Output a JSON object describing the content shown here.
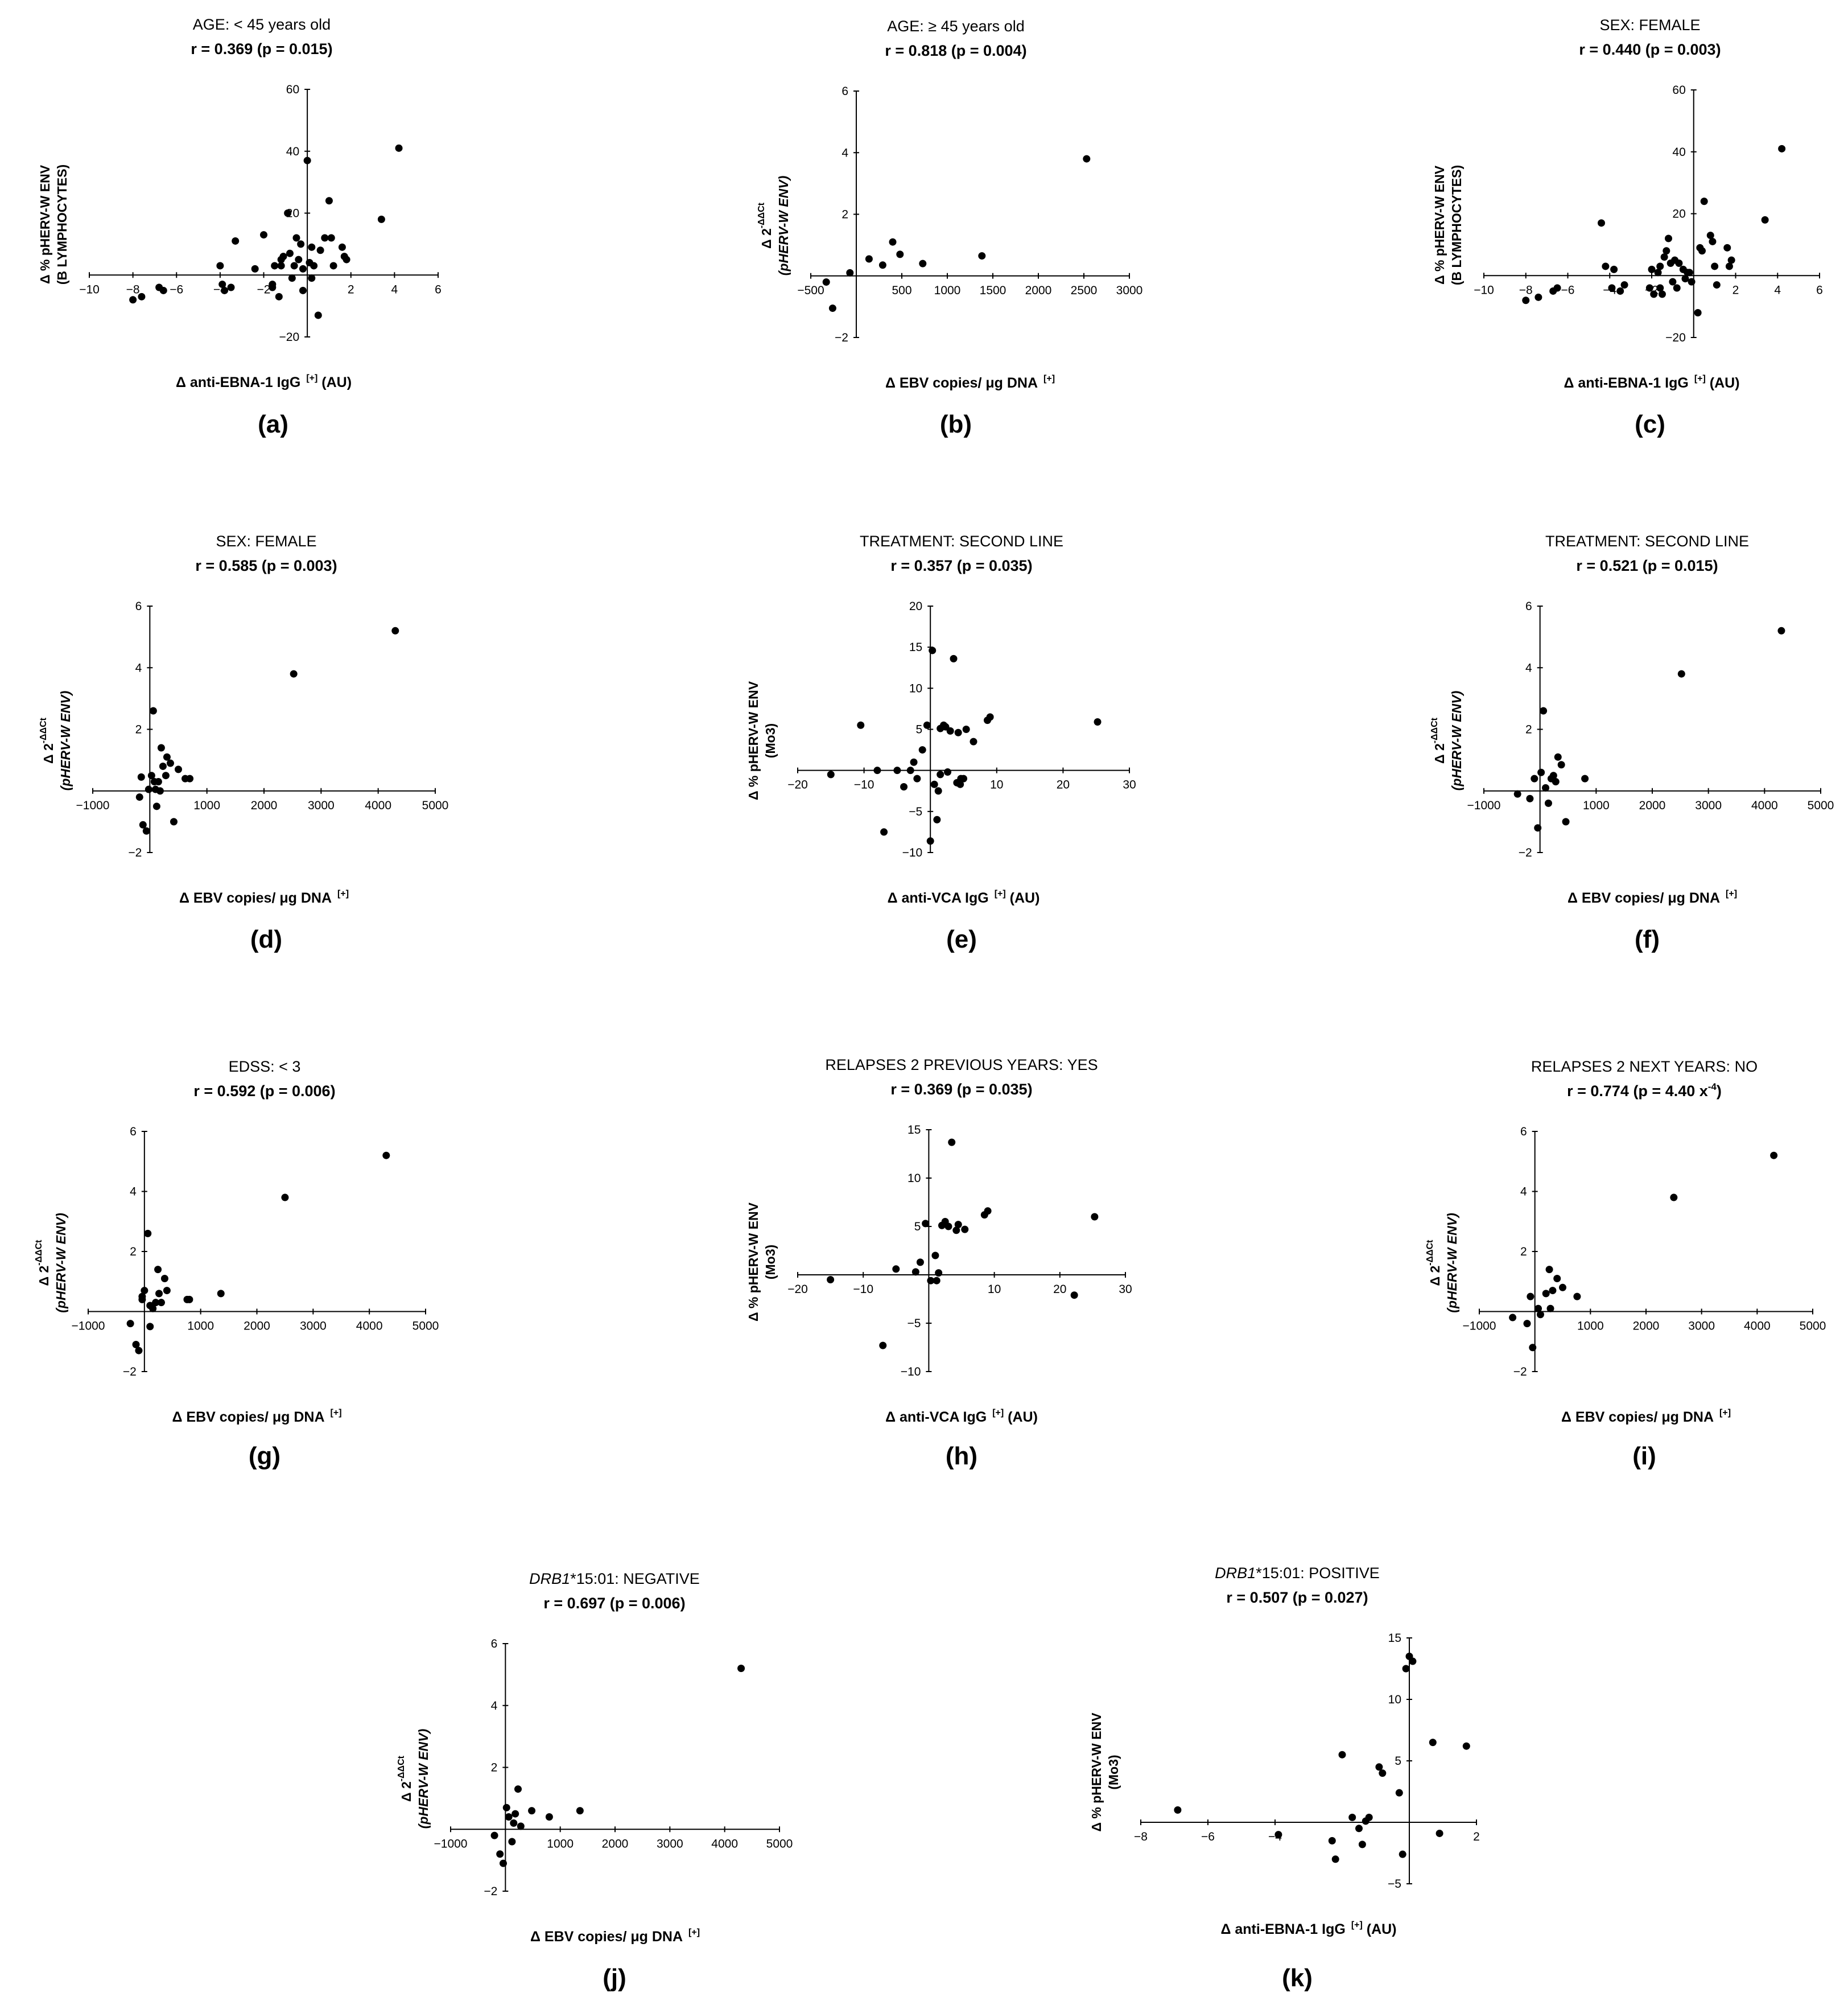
{
  "chart_data": [
    {
      "id": "a",
      "type": "scatter",
      "panel_label": "(a)",
      "title": "AGE: < 45 years old",
      "stat": "r = 0.369 (p = 0.015)",
      "ylabel": [
        "Δ % pHERV-W ENV",
        "(B LYMPHOCYTES)"
      ],
      "ylabel_italic": false,
      "xlabel": "Δ anti-EBNA-1 IgG",
      "xlabel_sup": "[+]",
      "xlabel_suffix": " (AU)",
      "xlim": [
        -10,
        6
      ],
      "ylim": [
        -20,
        60
      ],
      "xticks": [
        -10,
        -8,
        -6,
        -4,
        -2,
        2,
        4,
        6
      ],
      "yticks": [
        -20,
        20,
        40,
        60
      ],
      "x": [
        -8,
        -7.6,
        -6.8,
        -6.6,
        -4,
        -3.9,
        -3.8,
        -3.5,
        -3.3,
        -2.4,
        -2,
        -1.6,
        -1.5,
        -1.3,
        -1.2,
        -1.1,
        -0.9,
        -0.8,
        -0.7,
        -0.6,
        -0.5,
        -0.3,
        -0.2,
        0,
        0.1,
        0.2,
        0.3,
        0.5,
        0.6,
        1,
        1.1,
        1.2,
        1.6,
        1.7,
        1.8,
        3.4,
        4.2,
        -0.2,
        0.8,
        -1.2,
        -0.4,
        0.2,
        -1.6
      ],
      "y": [
        -8,
        -7,
        -4,
        -5,
        3,
        -3,
        -5,
        -4,
        11,
        2,
        13,
        -3,
        3,
        -7,
        5,
        6,
        20,
        7,
        -1,
        3,
        12,
        10,
        2,
        37,
        4,
        -1,
        3,
        -13,
        8,
        24,
        12,
        3,
        9,
        6,
        5,
        18,
        41,
        -5,
        12,
        3,
        5,
        9,
        -4
      ]
    },
    {
      "id": "b",
      "type": "scatter",
      "panel_label": "(b)",
      "title": "AGE: ≥ 45 years old",
      "stat": "r = 0.818 (p = 0.004)",
      "ylabel": [
        "Δ 2",
        "(pHERV-W ENV)"
      ],
      "ylabel_sup": "-ΔΔCt",
      "ylabel_italic": true,
      "xlabel": "Δ EBV copies/ μg DNA",
      "xlabel_sup": "[+]",
      "xlabel_suffix": "",
      "xlim": [
        -500,
        3000
      ],
      "ylim": [
        -2,
        6
      ],
      "xticks": [
        -500,
        500,
        1000,
        1500,
        2000,
        2500,
        3000
      ],
      "yticks": [
        -2,
        2,
        4,
        6
      ],
      "x": [
        -330,
        -260,
        -70,
        140,
        290,
        400,
        480,
        730,
        1380,
        2530
      ],
      "y": [
        -0.2,
        -1.05,
        0.1,
        0.55,
        0.35,
        1.1,
        0.7,
        0.4,
        0.65,
        3.8
      ]
    },
    {
      "id": "c",
      "type": "scatter",
      "panel_label": "(c)",
      "title": "SEX: FEMALE",
      "stat": "r = 0.440 (p = 0.003)",
      "ylabel": [
        "Δ % pHERV-W ENV",
        "(B LYMPHOCYTES)"
      ],
      "ylabel_italic": false,
      "xlabel": "Δ anti-EBNA-1 IgG",
      "xlabel_sup": "[+]",
      "xlabel_suffix": " (AU)",
      "xlim": [
        -10,
        6
      ],
      "ylim": [
        -20,
        60
      ],
      "xticks": [
        -10,
        -8,
        -6,
        -4,
        -2,
        2,
        4,
        6
      ],
      "yticks": [
        -20,
        20,
        40,
        60
      ],
      "x": [
        -8,
        -7.4,
        -6.7,
        -6.5,
        -4.4,
        -4.2,
        -3.9,
        -3.8,
        -3.5,
        -3.3,
        -2.1,
        -2,
        -1.9,
        -1.6,
        -1.5,
        -1.4,
        -1.3,
        -1.2,
        -1.1,
        -1,
        -0.9,
        -0.8,
        -0.7,
        -0.5,
        -0.4,
        -0.3,
        -0.1,
        0.2,
        0.3,
        0.5,
        0.8,
        0.9,
        1,
        1.1,
        1.6,
        1.7,
        1.8,
        3.4,
        4.2,
        -1.6,
        -0.2,
        -1.7,
        0.4
      ],
      "y": [
        -8,
        -7,
        -5,
        -4,
        17,
        3,
        -4,
        2,
        -5,
        -3,
        -4,
        2,
        -6,
        3,
        -6,
        6,
        8,
        12,
        4,
        -2,
        5,
        -4,
        4,
        2,
        -1,
        1,
        -2,
        -12,
        9,
        24,
        13,
        11,
        3,
        -3,
        9,
        3,
        5,
        18,
        41,
        -4,
        1,
        1,
        8
      ]
    },
    {
      "id": "d",
      "type": "scatter",
      "panel_label": "(d)",
      "title": "SEX: FEMALE",
      "stat": "r = 0.585 (p = 0.003)",
      "ylabel": [
        "Δ 2",
        "(pHERV-W ENV)"
      ],
      "ylabel_sup": "-ΔΔCt",
      "ylabel_italic": true,
      "xlabel": "Δ EBV copies/ μg DNA",
      "xlabel_sup": "[+]",
      "xlabel_suffix": "",
      "xlim": [
        -1000,
        5000
      ],
      "ylim": [
        -2,
        6
      ],
      "xticks": [
        -1000,
        1000,
        2000,
        3000,
        4000,
        5000
      ],
      "yticks": [
        -2,
        2,
        4,
        6
      ],
      "x": [
        -180,
        -120,
        -60,
        -20,
        30,
        60,
        80,
        120,
        150,
        180,
        200,
        230,
        280,
        300,
        360,
        420,
        500,
        620,
        700,
        2520,
        4300,
        -150,
        100
      ],
      "y": [
        -0.2,
        -1.1,
        -1.3,
        0.05,
        0.5,
        2.6,
        0.3,
        -0.5,
        0.3,
        0,
        1.4,
        0.8,
        0.5,
        1.1,
        0.9,
        -1,
        0.7,
        0.4,
        0.4,
        3.8,
        5.2,
        0.45,
        0.05
      ]
    },
    {
      "id": "e",
      "type": "scatter",
      "panel_label": "(e)",
      "title": "TREATMENT: SECOND LINE",
      "stat": "r = 0.357 (p = 0.035)",
      "ylabel": [
        "Δ % pHERV-W ENV",
        "(Mo3)"
      ],
      "ylabel_italic": false,
      "xlabel": "Δ anti-VCA IgG",
      "xlabel_sup": "[+]",
      "xlabel_suffix": " (AU)",
      "xlim": [
        -20,
        30
      ],
      "ylim": [
        -10,
        20
      ],
      "xticks": [
        -20,
        -10,
        10,
        20,
        30
      ],
      "yticks": [
        -10,
        -5,
        5,
        10,
        15,
        20
      ],
      "x": [
        -15,
        -10.5,
        -8,
        -7,
        -5,
        -4,
        -3,
        -2.5,
        -2,
        -1.2,
        -0.5,
        0.3,
        0.6,
        1,
        1.2,
        1.5,
        2,
        2.3,
        2.6,
        3,
        3.5,
        4,
        4.2,
        4.6,
        5,
        5.4,
        6.5,
        8.6,
        9,
        25.2,
        0,
        1.5,
        4.5
      ],
      "y": [
        -0.5,
        5.5,
        0,
        -7.5,
        0,
        -2,
        0,
        1,
        -1,
        2.5,
        5.5,
        14.6,
        -1.7,
        -6,
        -2.5,
        5.1,
        5.5,
        5.3,
        -0.2,
        4.8,
        13.6,
        -1.5,
        4.6,
        -1,
        -1,
        5,
        3.5,
        6.1,
        6.5,
        5.9,
        -8.6,
        -0.5,
        -1.7
      ]
    },
    {
      "id": "f",
      "type": "scatter",
      "panel_label": "(f)",
      "title": "TREATMENT: SECOND LINE",
      "stat": "r = 0.521 (p = 0.015)",
      "ylabel": [
        "Δ 2",
        "(pHERV-W ENV)"
      ],
      "ylabel_sup": "-ΔΔCt",
      "ylabel_italic": true,
      "xlabel": "Δ EBV copies/ μg DNA",
      "xlabel_sup": "[+]",
      "xlabel_suffix": "",
      "xlim": [
        -1000,
        5000
      ],
      "ylim": [
        -2,
        6
      ],
      "xticks": [
        -1000,
        1000,
        2000,
        3000,
        4000,
        5000
      ],
      "yticks": [
        -2,
        2,
        4,
        6
      ],
      "x": [
        -400,
        -180,
        -100,
        -40,
        20,
        60,
        100,
        150,
        200,
        280,
        320,
        380,
        460,
        800,
        2520,
        4300,
        240
      ],
      "y": [
        -0.1,
        -0.25,
        0.4,
        -1.2,
        0.6,
        2.6,
        0.1,
        -0.4,
        0.4,
        0.3,
        1.1,
        0.85,
        -1,
        0.4,
        3.8,
        5.2,
        0.5
      ]
    },
    {
      "id": "g",
      "type": "scatter",
      "panel_label": "(g)",
      "title": "EDSS: < 3",
      "stat": "r = 0.592 (p = 0.006)",
      "ylabel": [
        "Δ 2",
        "(pHERV-W ENV)"
      ],
      "ylabel_sup": "-ΔΔCt",
      "ylabel_italic": true,
      "xlabel": "Δ EBV copies/ μg DNA",
      "xlabel_sup": "[+]",
      "xlabel_suffix": "",
      "xlim": [
        -1000,
        5000
      ],
      "ylim": [
        -2,
        6
      ],
      "xticks": [
        -1000,
        1000,
        2000,
        3000,
        4000,
        5000
      ],
      "yticks": [
        -2,
        2,
        4,
        6
      ],
      "x": [
        -250,
        -150,
        -100,
        -40,
        0,
        60,
        100,
        150,
        200,
        240,
        260,
        300,
        360,
        400,
        760,
        800,
        1360,
        2500,
        4300,
        -40,
        100
      ],
      "y": [
        -0.4,
        -1.1,
        -1.3,
        0.4,
        0.7,
        2.6,
        -0.5,
        0.1,
        0.3,
        1.4,
        0.6,
        0.3,
        1.1,
        0.7,
        0.4,
        0.4,
        0.6,
        3.8,
        5.2,
        0.5,
        0.2
      ]
    },
    {
      "id": "h",
      "type": "scatter",
      "panel_label": "(h)",
      "title": "RELAPSES 2 PREVIOUS YEARS: YES",
      "stat": "r = 0.369 (p = 0.035)",
      "ylabel": [
        "Δ % pHERV-W ENV",
        "(Mo3)"
      ],
      "ylabel_italic": false,
      "xlabel": "Δ anti-VCA IgG",
      "xlabel_sup": "[+]",
      "xlabel_suffix": " (AU)",
      "xlim": [
        -20,
        30
      ],
      "ylim": [
        -10,
        15
      ],
      "xticks": [
        -20,
        -10,
        10,
        20,
        30
      ],
      "yticks": [
        -10,
        -5,
        5,
        10,
        15
      ],
      "x": [
        -15,
        -7,
        -5,
        -2,
        -1.3,
        -0.5,
        0.3,
        1,
        1.2,
        1.5,
        2,
        2.5,
        3,
        3.5,
        4.2,
        4.5,
        5.5,
        8.5,
        9,
        22.2,
        25.3
      ],
      "y": [
        -0.5,
        -7.3,
        0.6,
        0.3,
        1.3,
        5.3,
        -0.6,
        2,
        -0.6,
        0.2,
        5.1,
        5.5,
        5,
        13.7,
        4.6,
        5.2,
        4.7,
        6.2,
        6.6,
        -2.1,
        6
      ]
    },
    {
      "id": "i",
      "type": "scatter",
      "panel_label": "(i)",
      "title": "RELAPSES 2 NEXT YEARS: NO",
      "stat": "r = 0.774 (p = 4.40  x",
      "stat_sup": "-4",
      "stat_suffix": ")",
      "ylabel": [
        "Δ 2",
        "(pHERV-W ENV)"
      ],
      "ylabel_sup": "-ΔΔCt",
      "ylabel_italic": true,
      "xlabel": "Δ EBV copies/ μg DNA",
      "xlabel_sup": "[+]",
      "xlabel_suffix": "",
      "xlim": [
        -1000,
        5000
      ],
      "ylim": [
        -2,
        6
      ],
      "xticks": [
        -1000,
        1000,
        2000,
        3000,
        4000,
        5000
      ],
      "yticks": [
        -2,
        2,
        4,
        6
      ],
      "x": [
        -400,
        -140,
        -80,
        -40,
        60,
        100,
        200,
        260,
        320,
        400,
        500,
        760,
        2500,
        4300,
        280
      ],
      "y": [
        -0.2,
        -0.4,
        0.5,
        -1.2,
        0.1,
        -0.1,
        0.6,
        1.4,
        0.7,
        1.1,
        0.8,
        0.5,
        3.8,
        5.2,
        0.1
      ]
    },
    {
      "id": "j",
      "type": "scatter",
      "panel_label": "(j)",
      "title": "*15:01: NEGATIVE",
      "title_italic_prefix": "DRB1",
      "stat": "r = 0.697 (p = 0.006)",
      "ylabel": [
        "Δ 2",
        "(pHERV-W ENV)"
      ],
      "ylabel_sup": "-ΔΔCt",
      "ylabel_italic": true,
      "xlabel": "Δ EBV copies/ μg DNA",
      "xlabel_sup": "[+]",
      "xlabel_suffix": "",
      "xlim": [
        -1000,
        5000
      ],
      "ylim": [
        -2,
        6
      ],
      "xticks": [
        -1000,
        1000,
        2000,
        3000,
        4000,
        5000
      ],
      "yticks": [
        -2,
        2,
        4,
        6
      ],
      "x": [
        -200,
        -100,
        -40,
        20,
        60,
        120,
        180,
        230,
        280,
        480,
        800,
        1360,
        4300,
        150
      ],
      "y": [
        -0.2,
        -0.8,
        -1.1,
        0.7,
        0.4,
        -0.4,
        0.5,
        1.3,
        0.1,
        0.6,
        0.4,
        0.6,
        5.2,
        0.2
      ]
    },
    {
      "id": "k",
      "type": "scatter",
      "panel_label": "(k)",
      "title": "*15:01: POSITIVE",
      "title_italic_prefix": "DRB1",
      "stat": "r = 0.507 (p = 0.027)",
      "ylabel": [
        "Δ % pHERV-W ENV",
        "(Mo3)"
      ],
      "ylabel_italic": false,
      "xlabel": "Δ anti-EBNA-1 IgG",
      "xlabel_sup": "[+]",
      "xlabel_suffix": " (AU)",
      "xlim": [
        -8,
        2
      ],
      "ylim": [
        -5,
        15
      ],
      "xticks": [
        -8,
        -6,
        -4,
        2
      ],
      "yticks": [
        -5,
        5,
        10,
        15
      ],
      "x": [
        -6.9,
        -3.9,
        -2.3,
        -2.2,
        -2,
        -1.7,
        -1.5,
        -1.4,
        -1.3,
        -1.2,
        -0.9,
        -0.8,
        -0.3,
        -0.2,
        -0.1,
        0,
        0.7,
        0.9,
        1.7,
        0.1
      ],
      "y": [
        1,
        -1,
        -1.5,
        -3,
        5.5,
        0.4,
        -0.5,
        -1.8,
        0.1,
        0.4,
        4.5,
        4,
        2.4,
        -2.6,
        12.5,
        13.5,
        6.5,
        -0.9,
        6.2,
        13.1
      ]
    }
  ]
}
